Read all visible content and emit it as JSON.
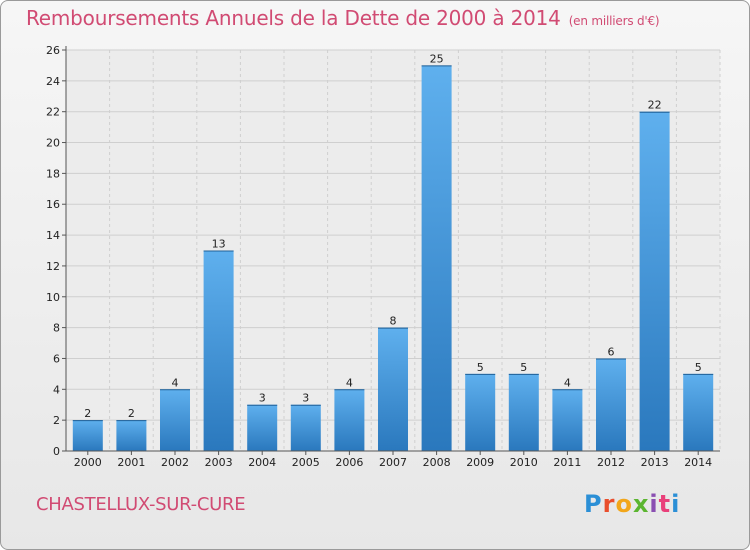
{
  "chart_data": {
    "type": "bar",
    "title": "Remboursements Annuels de la Dette de 2000 à 2014",
    "subtitle": "(en milliers d'€)",
    "xlabel": "",
    "ylabel": "",
    "categories": [
      "2000",
      "2001",
      "2002",
      "2003",
      "2004",
      "2005",
      "2006",
      "2007",
      "2008",
      "2009",
      "2010",
      "2011",
      "2012",
      "2013",
      "2014"
    ],
    "values": [
      2,
      2,
      4,
      13,
      3,
      3,
      4,
      8,
      25,
      5,
      5,
      4,
      6,
      22,
      5
    ],
    "ylim": [
      0,
      26
    ],
    "yticks": [
      0,
      2,
      4,
      6,
      8,
      10,
      12,
      14,
      16,
      18,
      20,
      22,
      24,
      26
    ],
    "grid": true,
    "bar_color": "#3f95d8"
  },
  "commune": "CHASTELLUX-SUR-CURE",
  "logo": {
    "letters": [
      "P",
      "r",
      "o",
      "x",
      "i",
      "t",
      "i"
    ]
  },
  "colors": {
    "title": "#d14b73",
    "bar_light": "#62b0ec",
    "bar_dark": "#2a7cc0",
    "grid": "#cfcfcf"
  }
}
